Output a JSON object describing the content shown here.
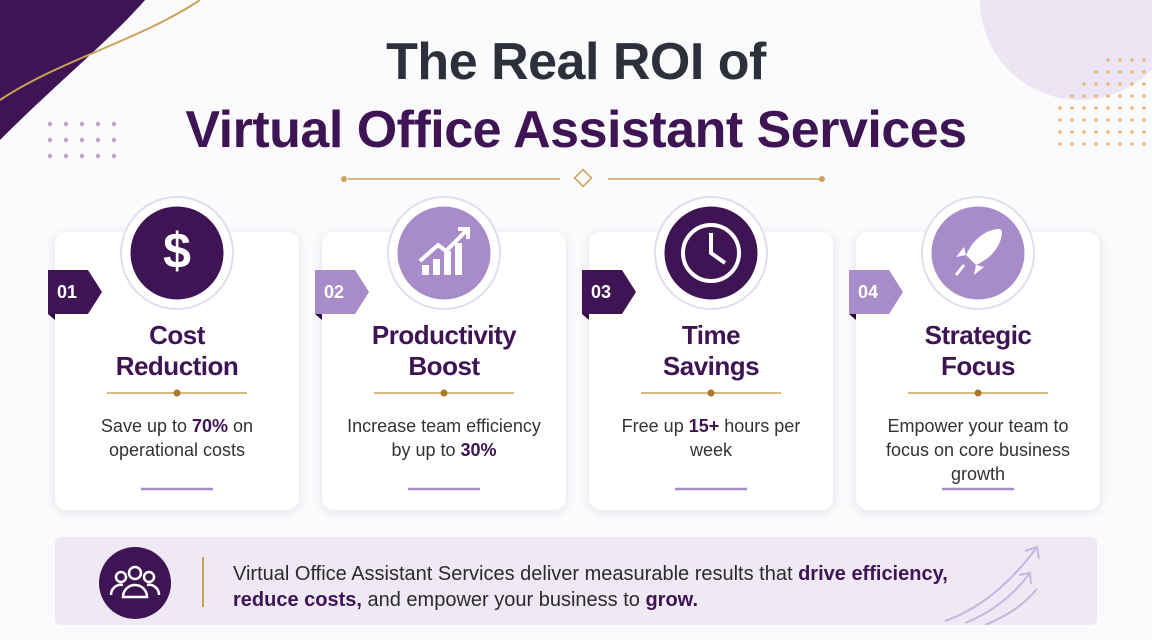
{
  "header": {
    "title_line_1": "The Real ROI of",
    "title_line_2": "Virtual Office Assistant Services"
  },
  "cards": [
    {
      "number": "01",
      "title_lines": [
        "Cost",
        "Reduction"
      ],
      "description": [
        {
          "text": "Save up to "
        },
        {
          "text": "70%",
          "bold": true
        },
        {
          "text": " on operational costs"
        }
      ]
    },
    {
      "number": "02",
      "title_lines": [
        "Productivity",
        "Boost"
      ],
      "description": [
        {
          "text": "Increase team efficiency by up to "
        },
        {
          "text": "30%",
          "bold": true
        }
      ]
    },
    {
      "number": "03",
      "title_lines": [
        "Time",
        "Savings"
      ],
      "description": [
        {
          "text": "Free up "
        },
        {
          "text": "15+",
          "bold": true
        },
        {
          "text": " hours per week"
        }
      ]
    },
    {
      "number": "04",
      "title_lines": [
        "Strategic",
        "Focus"
      ],
      "description": [
        {
          "text": "Empower your team to focus on core business growth"
        }
      ]
    }
  ],
  "footer": {
    "parts": [
      {
        "text": "Virtual Office Assistant Services deliver measurable results that "
      },
      {
        "text": "drive efficiency, reduce costs,",
        "bold": true
      },
      {
        "text": " and empower your business to "
      },
      {
        "text": "grow.",
        "bold": true
      }
    ]
  }
}
